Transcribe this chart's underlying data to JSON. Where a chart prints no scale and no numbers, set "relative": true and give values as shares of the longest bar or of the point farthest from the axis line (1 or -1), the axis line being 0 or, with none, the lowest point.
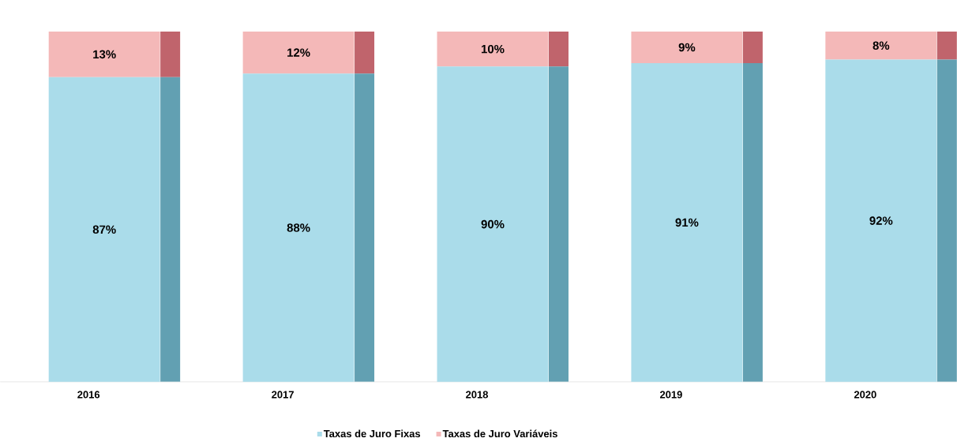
{
  "chart_data": [
    {
      "type": "bar",
      "stacked": true,
      "legend": "bottom",
      "categories": [
        "2016",
        "2017",
        "2018",
        "2019",
        "2020"
      ],
      "series": [
        {
          "name": "Taxas de Juro Fixas",
          "color": "#aadcea",
          "values": [
            87,
            88,
            90,
            91,
            92
          ],
          "value_labels": [
            "87%",
            "88%",
            "90%",
            "91%",
            "92%"
          ]
        },
        {
          "name": "Taxas de Juro Variáveis",
          "color": "#f4b8b8",
          "values": [
            13,
            12,
            10,
            9,
            8
          ],
          "value_labels": [
            "13%",
            "12%",
            "10%",
            "9%",
            "8%"
          ]
        }
      ]
    },
    {
      "type": "bar",
      "stacked": true,
      "relative": true,
      "categories": [
        null,
        null,
        null,
        null,
        null
      ],
      "series": [
        {
          "color": "#62a0b2",
          "values": [
            0.87,
            0.88,
            0.9,
            0.91,
            0.92
          ]
        },
        {
          "color": "#c0646c",
          "values": [
            0.13,
            0.12,
            0.1,
            0.09,
            0.08
          ]
        }
      ]
    }
  ]
}
